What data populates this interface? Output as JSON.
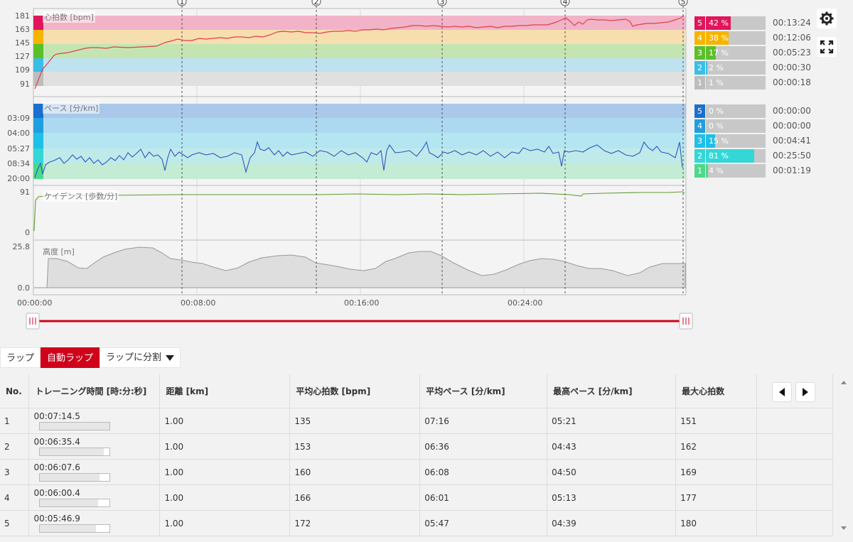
{
  "chart": {
    "hr_label": "心拍数 [bpm]",
    "hr_ticks": [
      "181",
      "163",
      "145",
      "127",
      "109",
      "91"
    ],
    "pace_label": "ペース [分/km]",
    "pace_ticks": [
      "03:09",
      "04:00",
      "05:27",
      "08:34",
      "20:00"
    ],
    "cad_label": "ケイデンス [歩数/分]",
    "cad_ticks": [
      "91",
      "0"
    ],
    "alt_label": "高度 [m]",
    "alt_ticks": [
      "25.8",
      "0.0"
    ],
    "time_ticks": [
      "00:00:00",
      "00:08:00",
      "00:16:00",
      "00:24:00"
    ],
    "lap_markers": [
      "1",
      "2",
      "3",
      "4",
      "5"
    ],
    "colors": {
      "hr_line": "#e0404a",
      "pace_line": "#2f56c0",
      "cad_line": "#5d9c2e",
      "alt_fill": "#dedede",
      "slider": "#d0021b"
    }
  },
  "hr_zones": [
    {
      "zone": "5",
      "percent": "42 %",
      "value": 42,
      "time": "00:13:24",
      "color": "#e0155a"
    },
    {
      "zone": "4",
      "percent": "38 %",
      "value": 38,
      "time": "00:12:06",
      "color": "#f5b400"
    },
    {
      "zone": "3",
      "percent": "17 %",
      "value": 17,
      "time": "00:05:23",
      "color": "#5cbf2a"
    },
    {
      "zone": "2",
      "percent": "2 %",
      "value": 2,
      "time": "00:00:30",
      "color": "#3bbde6"
    },
    {
      "zone": "1",
      "percent": "1 %",
      "value": 1,
      "time": "00:00:18",
      "color": "#bdbdbd"
    }
  ],
  "pace_zones": [
    {
      "zone": "5",
      "percent": "0 %",
      "value": 0,
      "time": "00:00:00",
      "color": "#1a6fd0"
    },
    {
      "zone": "4",
      "percent": "0 %",
      "value": 0,
      "time": "00:00:00",
      "color": "#1f9ee0"
    },
    {
      "zone": "3",
      "percent": "15 %",
      "value": 15,
      "time": "00:04:41",
      "color": "#1fc0e8"
    },
    {
      "zone": "2",
      "percent": "81 %",
      "value": 81,
      "time": "00:25:50",
      "color": "#34d6d6"
    },
    {
      "zone": "1",
      "percent": "4 %",
      "value": 4,
      "time": "00:01:19",
      "color": "#4cd98a"
    }
  ],
  "buttons": {
    "lap": "ラップ",
    "auto_lap": "自動ラップ",
    "split": "ラップに分割"
  },
  "table": {
    "headers": [
      "No.",
      "トレーニング時間 [時:分:秒]",
      "距離 [km]",
      "平均心拍数 [bpm]",
      "平均ペース [分/km]",
      "最高ペース [分/km]",
      "最大心拍数"
    ],
    "rows": [
      {
        "no": "1",
        "time": "00:07:14.5",
        "bar": 1.0,
        "dist": "1.00",
        "avg_hr": "135",
        "avg_pace": "07:16",
        "max_pace": "05:21",
        "max_hr": "151"
      },
      {
        "no": "2",
        "time": "00:06:35.4",
        "bar": 0.91,
        "dist": "1.00",
        "avg_hr": "153",
        "avg_pace": "06:36",
        "max_pace": "04:43",
        "max_hr": "162"
      },
      {
        "no": "3",
        "time": "00:06:07.6",
        "bar": 0.85,
        "dist": "1.00",
        "avg_hr": "160",
        "avg_pace": "06:08",
        "max_pace": "04:50",
        "max_hr": "169"
      },
      {
        "no": "4",
        "time": "00:06:00.4",
        "bar": 0.83,
        "dist": "1.00",
        "avg_hr": "166",
        "avg_pace": "06:01",
        "max_pace": "05:13",
        "max_hr": "177"
      },
      {
        "no": "5",
        "time": "00:05:46.9",
        "bar": 0.8,
        "dist": "1.00",
        "avg_hr": "172",
        "avg_pace": "05:47",
        "max_pace": "04:39",
        "max_hr": "180"
      }
    ]
  }
}
